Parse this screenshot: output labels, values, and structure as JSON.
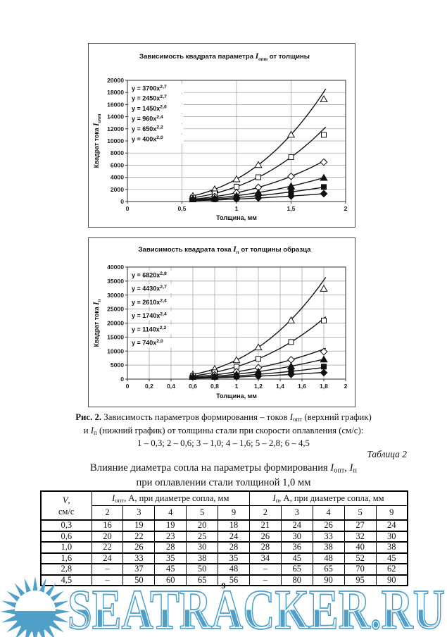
{
  "page": {
    "number": "9",
    "background": "#ffffff"
  },
  "watermark": {
    "text": "SEATRACKER.RU",
    "color": "#4f9fc9",
    "logo": "sun-icon"
  },
  "figure": {
    "caption_line1": [
      {
        "t": "Рис. 2. ",
        "b": true
      },
      {
        "t": "Зависимость параметров формирования – токов "
      },
      {
        "t": "I",
        "i": true
      },
      {
        "t": "опт",
        "sub": true
      },
      {
        "t": " (верхний график)"
      }
    ],
    "caption_line2": [
      {
        "t": "и "
      },
      {
        "t": "I",
        "i": true
      },
      {
        "t": "п",
        "sub": true
      },
      {
        "t": " (нижний график) от толщины стали при скорости оплавления (см/с):"
      }
    ],
    "caption_line3": [
      {
        "t": "1 – 0,3; 2 – 0,6; 3 – 1,0; 4 – 1,6; 5 – 2,8; 6 – 4,5"
      }
    ]
  },
  "table": {
    "label": "Таблица 2",
    "title_line1": [
      {
        "t": "Влияние диаметра сопла на параметры формирования "
      },
      {
        "t": "I",
        "i": true
      },
      {
        "t": "опт",
        "sub": true
      },
      {
        "t": ", "
      },
      {
        "t": "I",
        "i": true
      },
      {
        "t": "п",
        "sub": true
      }
    ],
    "title_line2": [
      {
        "t": "при оплавлении стали толщиной 1,0 мм"
      }
    ],
    "v_header_line1": [
      {
        "t": "V",
        "i": true
      },
      {
        "t": ","
      }
    ],
    "v_header_line2": [
      {
        "t": "см/с"
      }
    ],
    "group1": [
      {
        "t": "I",
        "i": true
      },
      {
        "t": "опт",
        "sub": true
      },
      {
        "t": ", А, при диаметре сопла, мм"
      }
    ],
    "group2": [
      {
        "t": "I",
        "i": true
      },
      {
        "t": "п",
        "sub": true
      },
      {
        "t": ", А, при диаметре сопла, мм"
      }
    ],
    "subcols": [
      "2",
      "3",
      "4",
      "5",
      "9"
    ],
    "rows": [
      {
        "v": "0,3",
        "iopt": [
          "16",
          "19",
          "19",
          "20",
          "18"
        ],
        "ip": [
          "21",
          "24",
          "26",
          "27",
          "24"
        ]
      },
      {
        "v": "0,6",
        "iopt": [
          "20",
          "22",
          "23",
          "25",
          "24"
        ],
        "ip": [
          "26",
          "30",
          "33",
          "32",
          "30"
        ]
      },
      {
        "v": "1,0",
        "iopt": [
          "22",
          "26",
          "28",
          "30",
          "28"
        ],
        "ip": [
          "28",
          "36",
          "38",
          "40",
          "38"
        ]
      },
      {
        "v": "1,6",
        "iopt": [
          "24",
          "33",
          "35",
          "38",
          "35"
        ],
        "ip": [
          "34",
          "45",
          "48",
          "52",
          "45"
        ]
      },
      {
        "v": "2,8",
        "iopt": [
          "–",
          "37",
          "45",
          "50",
          "48"
        ],
        "ip": [
          "–",
          "65",
          "65",
          "70",
          "62"
        ]
      },
      {
        "v": "4,5",
        "iopt": [
          "–",
          "50",
          "60",
          "65",
          "56"
        ],
        "ip": [
          "–",
          "80",
          "90",
          "95",
          "90"
        ]
      }
    ]
  },
  "chart_data": [
    {
      "type": "scatter",
      "title": "Зависимость квадрата параметра Iопт от толщины",
      "title_rich": [
        {
          "t": "Зависимость квадрата параметра "
        },
        {
          "t": "I",
          "i": true
        },
        {
          "t": "опт",
          "i": true,
          "sub": true
        },
        {
          "t": " от толщины"
        }
      ],
      "xlabel": "Толщина, мм",
      "ylabel": "Квадрат тока Iопт",
      "ylabel_rich": [
        {
          "t": "Квадрат тока "
        },
        {
          "t": "I",
          "i": true
        },
        {
          "t": "опт",
          "i": true,
          "sub": true
        }
      ],
      "xlim": [
        0,
        2
      ],
      "ylim": [
        0,
        20000
      ],
      "grid": true,
      "legend_position": "equation labels stacked top-left inside plot",
      "yticks": [
        0,
        2000,
        4000,
        6000,
        8000,
        10000,
        12000,
        14000,
        16000,
        18000,
        20000
      ],
      "xticks": [
        {
          "v": 0,
          "l": "0"
        },
        {
          "v": 0.5,
          "l": "0,5"
        },
        {
          "v": 1,
          "l": "1"
        },
        {
          "v": 1.5,
          "l": "1,5"
        },
        {
          "v": 2,
          "l": "2"
        }
      ],
      "x": [
        0.6,
        0.8,
        1.0,
        1.2,
        1.5,
        1.8
      ],
      "series": [
        {
          "name": "6 – 4,5 см/с",
          "marker": "triangle",
          "filled": false,
          "equation": "y = 3700x",
          "exponent": "2,7",
          "trend_coef": 3700,
          "trend_power": 2.7,
          "values": [
            930,
            2030,
            3700,
            6050,
            11050,
            16900
          ]
        },
        {
          "name": "5 – 2,8 см/с",
          "marker": "square",
          "filled": false,
          "equation": "y = 2450x",
          "exponent": "2,7",
          "trend_coef": 2450,
          "trend_power": 2.7,
          "values": [
            620,
            1340,
            2450,
            4010,
            7320,
            11000
          ]
        },
        {
          "name": "4 – 1,6 см/с",
          "marker": "diamond",
          "filled": false,
          "equation": "y = 1450x",
          "exponent": "2,6",
          "trend_coef": 1450,
          "trend_power": 2.6,
          "values": [
            385,
            810,
            1450,
            2330,
            4160,
            6500
          ]
        },
        {
          "name": "3 – 1,0 см/с",
          "marker": "triangle",
          "filled": true,
          "equation": "y = 960x",
          "exponent": "2,4",
          "trend_coef": 960,
          "trend_power": 2.4,
          "values": [
            280,
            560,
            960,
            1490,
            2540,
            3930
          ]
        },
        {
          "name": "2 – 0,6 см/с",
          "marker": "square",
          "filled": true,
          "equation": "y = 650x",
          "exponent": "2,2",
          "trend_coef": 650,
          "trend_power": 2.2,
          "values": [
            210,
            400,
            650,
            970,
            1590,
            2400
          ]
        },
        {
          "name": "1 – 0,3 см/с",
          "marker": "diamond",
          "filled": true,
          "equation": "y = 400x",
          "exponent": "2,0",
          "trend_coef": 400,
          "trend_power": 2.0,
          "values": [
            145,
            255,
            400,
            575,
            900,
            1300
          ]
        }
      ]
    },
    {
      "type": "scatter",
      "title": "Зависимость квадрата тока Iп от толщины образца",
      "title_rich": [
        {
          "t": "Зависимость квадрата тока "
        },
        {
          "t": "I",
          "i": true
        },
        {
          "t": "п",
          "i": true,
          "sub": true
        },
        {
          "t": " от толщины образца"
        }
      ],
      "xlabel": "Толщина, мм",
      "ylabel": "Квадрат тока Iп",
      "ylabel_rich": [
        {
          "t": "Квадрат тока "
        },
        {
          "t": "I",
          "i": true
        },
        {
          "t": "п",
          "i": true,
          "sub": true
        }
      ],
      "xlim": [
        0,
        2
      ],
      "ylim": [
        0,
        40000
      ],
      "grid": true,
      "legend_position": "equation labels stacked top-left inside plot",
      "yticks": [
        0,
        5000,
        10000,
        15000,
        20000,
        25000,
        30000,
        35000,
        40000
      ],
      "xticks": [
        {
          "v": 0,
          "l": "0"
        },
        {
          "v": 0.2,
          "l": "0,2"
        },
        {
          "v": 0.4,
          "l": "0,4"
        },
        {
          "v": 0.6,
          "l": "0,6"
        },
        {
          "v": 0.8,
          "l": "0,8"
        },
        {
          "v": 1,
          "l": "1"
        },
        {
          "v": 1.2,
          "l": "1,2"
        },
        {
          "v": 1.4,
          "l": "1,4"
        },
        {
          "v": 1.6,
          "l": "1,6"
        },
        {
          "v": 1.8,
          "l": "1,8"
        },
        {
          "v": 2,
          "l": "2"
        }
      ],
      "x": [
        0.6,
        0.8,
        1.0,
        1.2,
        1.5,
        1.8
      ],
      "series": [
        {
          "name": "6 – 4,5 см/с",
          "marker": "triangle",
          "filled": false,
          "equation": "y = 6820x",
          "exponent": "2,8",
          "trend_coef": 6820,
          "trend_power": 2.8,
          "values": [
            1630,
            3650,
            6820,
            11360,
            21000,
            32300
          ]
        },
        {
          "name": "5 – 2,8 см/с",
          "marker": "square",
          "filled": false,
          "equation": "y = 4430x",
          "exponent": "2,7",
          "trend_coef": 4430,
          "trend_power": 2.7,
          "values": [
            1120,
            2430,
            4430,
            7250,
            13240,
            20900
          ]
        },
        {
          "name": "4 – 1,6 см/с",
          "marker": "diamond",
          "filled": false,
          "equation": "y = 2610x",
          "exponent": "2,4",
          "trend_coef": 2610,
          "trend_power": 2.4,
          "values": [
            770,
            1530,
            2610,
            4040,
            6910,
            9800
          ]
        },
        {
          "name": "3 – 1,0 см/с",
          "marker": "triangle",
          "filled": true,
          "equation": "y = 1740x",
          "exponent": "2,4",
          "trend_coef": 1740,
          "trend_power": 2.4,
          "values": [
            510,
            1020,
            1740,
            2690,
            4600,
            7050
          ]
        },
        {
          "name": "2 – 0,6 см/с",
          "marker": "square",
          "filled": true,
          "equation": "y = 1140x",
          "exponent": "2,2",
          "trend_coef": 1140,
          "trend_power": 2.2,
          "values": [
            370,
            700,
            1140,
            1700,
            2780,
            4450
          ]
        },
        {
          "name": "1 – 0,3 см/с",
          "marker": "diamond",
          "filled": true,
          "equation": "y = 740x",
          "exponent": "2,0",
          "trend_coef": 740,
          "trend_power": 2.0,
          "values": [
            265,
            475,
            740,
            1065,
            1665,
            2300
          ]
        }
      ]
    }
  ]
}
